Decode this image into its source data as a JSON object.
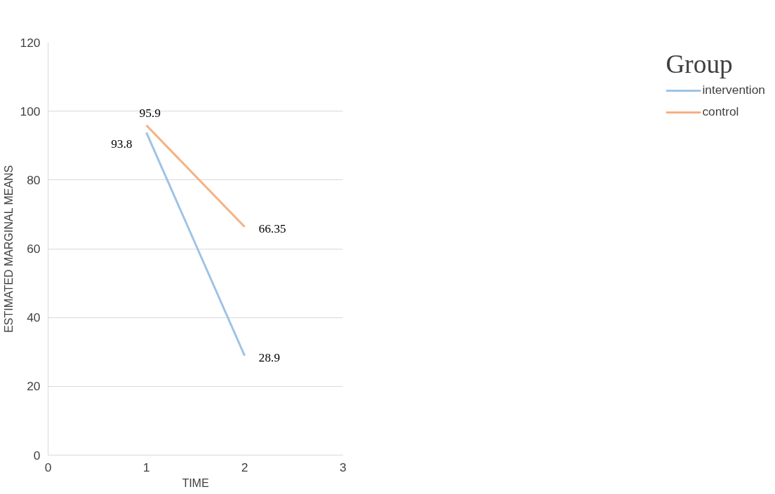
{
  "chart_data": {
    "type": "line",
    "xlabel": "TIME",
    "ylabel": "ESTIMATED MARGINAL MEANS",
    "legend_title": "Group",
    "x": [
      1,
      2
    ],
    "xlim": [
      0,
      3
    ],
    "xticks": [
      0,
      1,
      2,
      3
    ],
    "ylim": [
      0,
      120
    ],
    "yticks": [
      0,
      20,
      40,
      60,
      80,
      100,
      120
    ],
    "series": [
      {
        "name": "intervention",
        "color": "#9dc3e6",
        "values": [
          93.8,
          28.9
        ]
      },
      {
        "name": "control",
        "color": "#f4b183",
        "values": [
          95.9,
          66.35
        ]
      }
    ],
    "data_labels": true,
    "grid": "y",
    "legend": "right",
    "marker": "none",
    "line_style": "solid"
  }
}
